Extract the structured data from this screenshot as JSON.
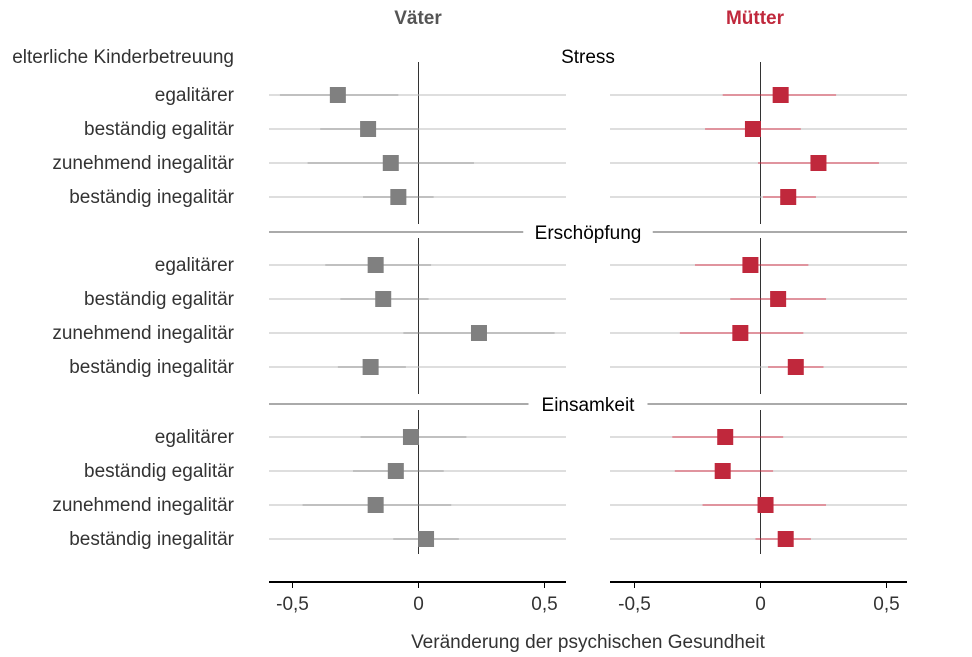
{
  "chart_data": {
    "type": "forest-plot",
    "xlabel": "Veränderung der psychischen Gesundheit",
    "y_group_label": "elterliche Kinderbetreuung",
    "xlim": [
      -0.6,
      0.6
    ],
    "xticks": [
      -0.5,
      0,
      0.5
    ],
    "xtick_labels": [
      "-0,5",
      "0",
      "0,5"
    ],
    "categories": [
      "egalitärer",
      "beständig egalitär",
      "zunehmend inegalitär",
      "beständig inegalitär"
    ],
    "panels": [
      {
        "name": "Väter",
        "color": "#808080",
        "title_color": "#555555"
      },
      {
        "name": "Mütter",
        "color": "#C0283C",
        "title_color": "#C0283C"
      }
    ],
    "sections": [
      {
        "title": "Stress",
        "series": [
          {
            "panel": "Väter",
            "estimates": [
              -0.32,
              -0.2,
              -0.11,
              -0.08
            ],
            "lower": [
              -0.55,
              -0.39,
              -0.44,
              -0.22
            ],
            "upper": [
              -0.08,
              0.0,
              0.22,
              0.06
            ]
          },
          {
            "panel": "Mütter",
            "estimates": [
              0.08,
              -0.03,
              0.23,
              0.11
            ],
            "lower": [
              -0.15,
              -0.22,
              -0.01,
              0.01
            ],
            "upper": [
              0.3,
              0.16,
              0.47,
              0.22
            ]
          }
        ]
      },
      {
        "title": "Erschöpfung",
        "series": [
          {
            "panel": "Väter",
            "estimates": [
              -0.17,
              -0.14,
              0.24,
              -0.19
            ],
            "lower": [
              -0.37,
              -0.31,
              -0.06,
              -0.32
            ],
            "upper": [
              0.05,
              0.04,
              0.54,
              -0.05
            ]
          },
          {
            "panel": "Mütter",
            "estimates": [
              -0.04,
              0.07,
              -0.08,
              0.14
            ],
            "lower": [
              -0.26,
              -0.12,
              -0.32,
              0.03
            ],
            "upper": [
              0.19,
              0.26,
              0.17,
              0.25
            ]
          }
        ]
      },
      {
        "title": "Einsamkeit",
        "series": [
          {
            "panel": "Väter",
            "estimates": [
              -0.03,
              -0.09,
              -0.17,
              0.03
            ],
            "lower": [
              -0.23,
              -0.26,
              -0.46,
              -0.1
            ],
            "upper": [
              0.19,
              0.1,
              0.13,
              0.16
            ]
          },
          {
            "panel": "Mütter",
            "estimates": [
              -0.14,
              -0.15,
              0.02,
              0.1
            ],
            "lower": [
              -0.35,
              -0.34,
              -0.23,
              -0.02
            ],
            "upper": [
              0.09,
              0.05,
              0.26,
              0.2
            ]
          }
        ]
      }
    ]
  }
}
